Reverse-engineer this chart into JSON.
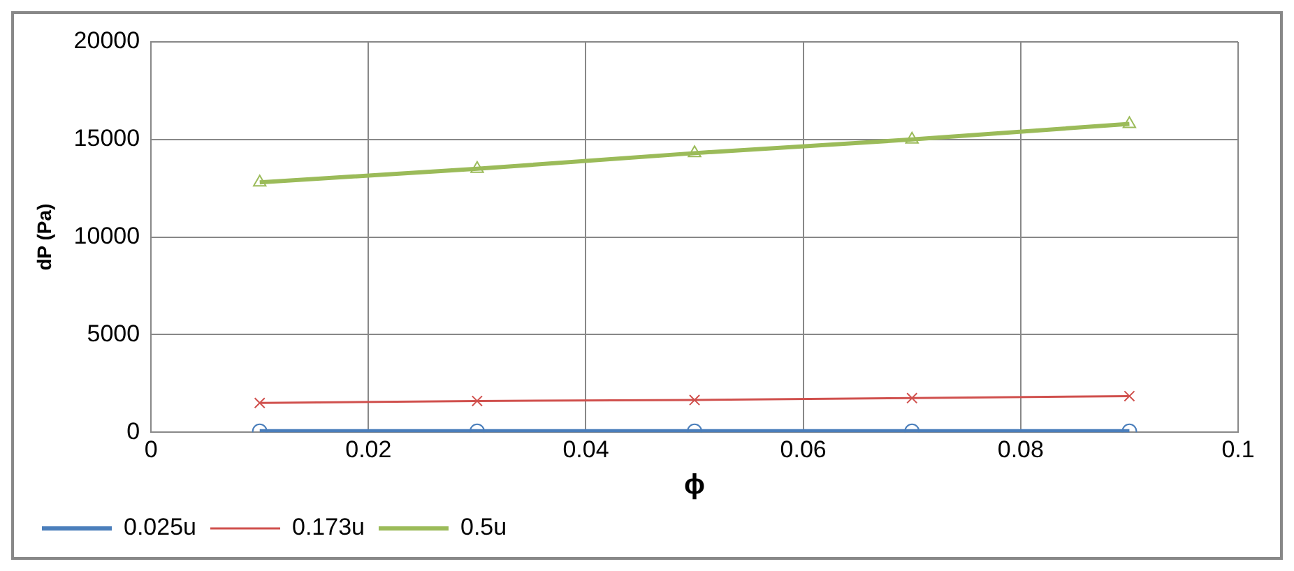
{
  "chart_data": {
    "type": "line",
    "xlabel": "ϕ",
    "ylabel": "dP (Pa)",
    "x": [
      0.01,
      0.03,
      0.05,
      0.07,
      0.09
    ],
    "series": [
      {
        "name": "0.025u",
        "color": "#4a7ebb",
        "marker": "circle",
        "values": [
          50,
          50,
          50,
          50,
          50
        ]
      },
      {
        "name": "0.173u",
        "color": "#d0504d",
        "marker": "cross",
        "values": [
          1500,
          1600,
          1650,
          1750,
          1850
        ]
      },
      {
        "name": "0.5u",
        "color": "#9bbb59",
        "marker": "triangle",
        "values": [
          12800,
          13500,
          14300,
          15000,
          15800
        ]
      }
    ],
    "xlim": [
      0,
      0.1
    ],
    "xticks": [
      0,
      0.02,
      0.04,
      0.06,
      0.08,
      0.1
    ],
    "ylim": [
      0,
      20000
    ],
    "yticks": [
      0,
      5000,
      10000,
      15000,
      20000
    ],
    "grid": true,
    "legend": "bottom left",
    "line_style": "solid"
  }
}
